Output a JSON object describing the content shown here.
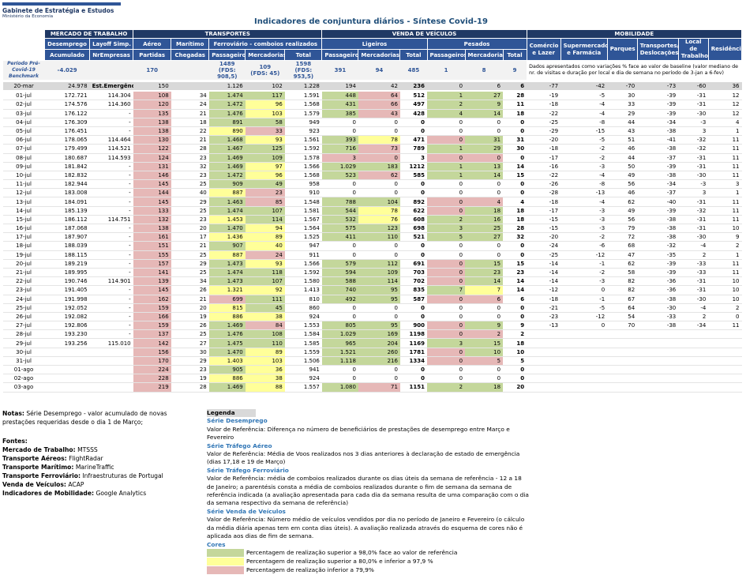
{
  "header": {
    "org": "Gabinete de Estratégia e Estudos",
    "ministry": "Ministério da Economia",
    "title": "Indicadores de conjuntura diários - Síntese Covid-19"
  },
  "table": {
    "groups": [
      "MERCADO DE TRABALHO",
      "TRANSPORTES",
      "VENDA DE VEÍCULOS",
      "MOBILIDADE"
    ],
    "subheaders": [
      "Desemprego",
      "Layoff Simp.",
      "Aéreo",
      "Marítimo",
      "Ferroviário - comboios realizados",
      "Ligeiros",
      "Pesados"
    ],
    "mobility_headers": [
      "Comércio e Lazer",
      "Supermercados e Farmácia",
      "Parques",
      "Transportes/ Deslocações",
      "Local de Trabalho",
      "Residência"
    ],
    "columns": [
      "Acumulado",
      "NrEmpresas",
      "Partidas",
      "Chegadas",
      "Passageiros",
      "Mercadorias",
      "Total",
      "Passageiros",
      "Mercadorias",
      "Total",
      "Passageiros",
      "Mercadorias",
      "Total"
    ],
    "shade_colors": {
      "g": "#c4d79b",
      "y": "#ffff99",
      "r": "#e6b8b7"
    },
    "benchmark": {
      "cells": [
        "Período Pré-Covid-19 Benchmark",
        "-4.029",
        null,
        "170",
        null,
        "1489\n(FDS: 908,5)",
        "109\n(FDS: 45)",
        "1598\n(FDS: 953,5)",
        "391",
        "94",
        "485",
        "1",
        "8",
        "9"
      ],
      "note": "Dados apresentados como variações % face ao valor de baseline (valor mediano de nr. de visitas e duração por local e dia de semana no período de 3-jan a 6-fev)"
    },
    "emergency": {
      "cells": [
        "20-mar",
        "24.978",
        "Est.Emergência",
        "150",
        null,
        "1.126",
        "102",
        "1.228",
        "194",
        "42",
        "236",
        "0",
        "6",
        "6",
        "-77",
        "-42",
        "-70",
        "-73",
        "-60",
        "36"
      ]
    },
    "rows": [
      {
        "cells": [
          "01-jul",
          "172.721",
          "114.304",
          "108",
          "34",
          "1.474",
          "117",
          "1.591",
          "448",
          "64",
          "512",
          "1",
          "27",
          "28",
          "-19",
          "-5",
          "30",
          "-39",
          "-31",
          "12"
        ],
        "shade": "...r.gg.gr.gg"
      },
      {
        "cells": [
          "02-jul",
          "174.576",
          "114.360",
          "120",
          "24",
          "1.472",
          "96",
          "1.568",
          "431",
          "66",
          "497",
          "2",
          "9",
          "11",
          "-18",
          "-4",
          "33",
          "-39",
          "-31",
          "12"
        ],
        "shade": "...r.gy.gr.gg"
      },
      {
        "cells": [
          "03-jul",
          "176.122",
          "-",
          "135",
          "21",
          "1.476",
          "103",
          "1.579",
          "385",
          "43",
          "428",
          "4",
          "14",
          "18",
          "-22",
          "-4",
          "29",
          "-39",
          "-30",
          "12"
        ],
        "shade": "...r.gy.gr.gg"
      },
      {
        "cells": [
          "04-jul",
          "176.309",
          "-",
          "138",
          "18",
          "891",
          "58",
          "949",
          "0",
          "0",
          "0",
          "0",
          "0",
          "0",
          "-25",
          "-8",
          "44",
          "-34",
          "-3",
          "4"
        ],
        "shade": "...r.gg"
      },
      {
        "cells": [
          "05-jul",
          "176.451",
          "-",
          "138",
          "22",
          "890",
          "33",
          "923",
          "0",
          "0",
          "0",
          "0",
          "0",
          "0",
          "-29",
          "-15",
          "43",
          "-38",
          "3",
          "1"
        ],
        "shade": "...r.yr"
      },
      {
        "cells": [
          "06-jul",
          "178.065",
          "114.464",
          "130",
          "21",
          "1.468",
          "93",
          "1.561",
          "393",
          "78",
          "471",
          "0",
          "31",
          "31",
          "-20",
          "-5",
          "51",
          "-41",
          "-32",
          "11"
        ],
        "shade": "...r.gy.gy.rg"
      },
      {
        "cells": [
          "07-jul",
          "179.499",
          "114.521",
          "122",
          "28",
          "1.467",
          "125",
          "1.592",
          "716",
          "73",
          "789",
          "1",
          "29",
          "30",
          "-18",
          "-2",
          "46",
          "-38",
          "-32",
          "11"
        ],
        "shade": "...r.gg.gr.gg"
      },
      {
        "cells": [
          "08-jul",
          "180.687",
          "114.593",
          "124",
          "23",
          "1.469",
          "109",
          "1.578",
          "3",
          "0",
          "3",
          "0",
          "0",
          "0",
          "-17",
          "-2",
          "44",
          "-37",
          "-31",
          "11"
        ],
        "shade": "...r.gg.rr.rr"
      },
      {
        "cells": [
          "09-jul",
          "181.842",
          "-",
          "131",
          "32",
          "1.469",
          "97",
          "1.566",
          "1.029",
          "183",
          "1212",
          "1",
          "13",
          "14",
          "-16",
          "-3",
          "50",
          "-39",
          "-31",
          "11"
        ],
        "shade": "...r.gy.gg.gg"
      },
      {
        "cells": [
          "10-jul",
          "182.832",
          "-",
          "146",
          "23",
          "1.472",
          "96",
          "1.568",
          "523",
          "62",
          "585",
          "1",
          "14",
          "15",
          "-22",
          "-4",
          "49",
          "-38",
          "-30",
          "11"
        ],
        "shade": "...r.gy.gr.gg"
      },
      {
        "cells": [
          "11-jul",
          "182.944",
          "-",
          "145",
          "25",
          "909",
          "49",
          "958",
          "0",
          "0",
          "0",
          "0",
          "0",
          "0",
          "-26",
          "-8",
          "56",
          "-34",
          "-3",
          "3"
        ],
        "shade": "...r.gg"
      },
      {
        "cells": [
          "12-jul",
          "183.008",
          "-",
          "144",
          "40",
          "887",
          "23",
          "910",
          "0",
          "0",
          "0",
          "0",
          "0",
          "0",
          "-28",
          "-13",
          "46",
          "-37",
          "3",
          "1"
        ],
        "shade": "...r.yr"
      },
      {
        "cells": [
          "13-jul",
          "184.091",
          "-",
          "145",
          "29",
          "1.463",
          "85",
          "1.548",
          "788",
          "104",
          "892",
          "0",
          "4",
          "4",
          "-18",
          "-4",
          "62",
          "-40",
          "-31",
          "11"
        ],
        "shade": "...r.gr.gg.rr"
      },
      {
        "cells": [
          "14-jul",
          "185.139",
          "-",
          "133",
          "25",
          "1.474",
          "107",
          "1.581",
          "544",
          "78",
          "622",
          "0",
          "18",
          "18",
          "-17",
          "-3",
          "49",
          "-39",
          "-32",
          "11"
        ],
        "shade": "...r.gg.gy.rg"
      },
      {
        "cells": [
          "15-jul",
          "186.112",
          "114.751",
          "132",
          "23",
          "1.453",
          "114",
          "1.567",
          "532",
          "76",
          "608",
          "2",
          "16",
          "18",
          "-15",
          "-3",
          "56",
          "-38",
          "-31",
          "11"
        ],
        "shade": "...r.yg.gy.gg"
      },
      {
        "cells": [
          "16-jul",
          "187.068",
          "-",
          "138",
          "20",
          "1.470",
          "94",
          "1.564",
          "575",
          "123",
          "698",
          "3",
          "25",
          "28",
          "-15",
          "-3",
          "79",
          "-38",
          "-31",
          "10"
        ],
        "shade": "...r.gy.gg.gg"
      },
      {
        "cells": [
          "17-jul",
          "187.907",
          "-",
          "161",
          "17",
          "1.436",
          "89",
          "1.525",
          "411",
          "110",
          "521",
          "5",
          "27",
          "32",
          "-20",
          "-2",
          "72",
          "-38",
          "-30",
          "9"
        ],
        "shade": "...r.yy.gg.gg"
      },
      {
        "cells": [
          "18-jul",
          "188.039",
          "-",
          "151",
          "21",
          "907",
          "40",
          "947",
          "0",
          "0",
          "0",
          "0",
          "0",
          "0",
          "-24",
          "-6",
          "68",
          "-32",
          "-4",
          "2"
        ],
        "shade": "...r.gy"
      },
      {
        "cells": [
          "19-jul",
          "188.115",
          "-",
          "155",
          "25",
          "887",
          "24",
          "911",
          "0",
          "0",
          "0",
          "0",
          "0",
          "0",
          "-25",
          "-12",
          "47",
          "-35",
          "2",
          "1"
        ],
        "shade": "...r.yr"
      },
      {
        "cells": [
          "20-jul",
          "189.219",
          "-",
          "157",
          "29",
          "1.473",
          "93",
          "1.566",
          "579",
          "112",
          "691",
          "0",
          "15",
          "15",
          "-14",
          "-1",
          "62",
          "-39",
          "-33",
          "11"
        ],
        "shade": "...r.gy.gg.rg"
      },
      {
        "cells": [
          "21-jul",
          "189.995",
          "-",
          "141",
          "25",
          "1.474",
          "118",
          "1.592",
          "594",
          "109",
          "703",
          "0",
          "23",
          "23",
          "-14",
          "-2",
          "58",
          "-39",
          "-33",
          "11"
        ],
        "shade": "...r.gg.gg.rg"
      },
      {
        "cells": [
          "22-jul",
          "190.746",
          "114.901",
          "139",
          "34",
          "1.473",
          "107",
          "1.580",
          "588",
          "114",
          "702",
          "0",
          "14",
          "14",
          "-14",
          "-3",
          "82",
          "-36",
          "-31",
          "10"
        ],
        "shade": "...r.gg.gg.rg"
      },
      {
        "cells": [
          "23-jul",
          "191.405",
          "-",
          "145",
          "26",
          "1.321",
          "92",
          "1.413",
          "740",
          "95",
          "835",
          "7",
          "7",
          "14",
          "-12",
          "0",
          "82",
          "-36",
          "-31",
          "10"
        ],
        "shade": "...r.yy.gg.gy"
      },
      {
        "cells": [
          "24-jul",
          "191.998",
          "-",
          "162",
          "21",
          "699",
          "111",
          "810",
          "492",
          "95",
          "587",
          "0",
          "6",
          "6",
          "-18",
          "-1",
          "67",
          "-38",
          "-30",
          "10"
        ],
        "shade": "...r.rg.gg.rr"
      },
      {
        "cells": [
          "25-jul",
          "192.052",
          "-",
          "159",
          "20",
          "815",
          "45",
          "860",
          "0",
          "0",
          "0",
          "0",
          "0",
          "0",
          "-21",
          "-5",
          "64",
          "-30",
          "-4",
          "2"
        ],
        "shade": "...r.yg"
      },
      {
        "cells": [
          "26-jul",
          "192.082",
          "-",
          "166",
          "19",
          "886",
          "38",
          "924",
          "0",
          "0",
          "0",
          "0",
          "0",
          "0",
          "-23",
          "-12",
          "54",
          "-33",
          "2",
          "0"
        ],
        "shade": "...r.yy"
      },
      {
        "cells": [
          "27-jul",
          "192.806",
          "-",
          "159",
          "26",
          "1.469",
          "84",
          "1.553",
          "805",
          "95",
          "900",
          "0",
          "9",
          "9",
          "-13",
          "0",
          "70",
          "-38",
          "-34",
          "11"
        ],
        "shade": "...r.gr.gg.rg"
      },
      {
        "cells": [
          "28-jul",
          "193.230",
          "-",
          "137",
          "25",
          "1.476",
          "108",
          "1.584",
          "1.029",
          "169",
          "1198",
          "0",
          "2",
          "2"
        ],
        "shade": "...r.gg.gg.rr"
      },
      {
        "cells": [
          "29-jul",
          "193.256",
          "115.010",
          "142",
          "27",
          "1.475",
          "110",
          "1.585",
          "965",
          "204",
          "1169",
          "3",
          "15",
          "18"
        ],
        "shade": "...r.gg.gg.gg"
      },
      {
        "cells": [
          "30-jul",
          null,
          null,
          "156",
          "30",
          "1.470",
          "89",
          "1.559",
          "1.521",
          "260",
          "1781",
          "0",
          "10",
          "10"
        ],
        "shade": "...r.gy.gg.rg"
      },
      {
        "cells": [
          "31-jul",
          null,
          null,
          "170",
          "29",
          "1.403",
          "103",
          "1.506",
          "1.118",
          "216",
          "1334",
          "0",
          "5",
          "5"
        ],
        "shade": "...r.yy.gg.rr"
      },
      {
        "cells": [
          "01-ago",
          null,
          null,
          "224",
          "23",
          "905",
          "36",
          "941",
          "0",
          "0",
          "0",
          "0",
          "0",
          "0"
        ],
        "shade": "...r.gy"
      },
      {
        "cells": [
          "02-ago",
          null,
          null,
          "228",
          "19",
          "886",
          "38",
          "924",
          "0",
          "0",
          "0",
          "0",
          "0",
          "0"
        ],
        "shade": "...r.yy"
      },
      {
        "cells": [
          "03-ago",
          null,
          null,
          "219",
          "28",
          "1.469",
          "88",
          "1.557",
          "1.080",
          "71",
          "1151",
          "2",
          "18",
          "20"
        ],
        "shade": "...r.gy.gr.gg"
      }
    ]
  },
  "notes": {
    "label": "Notas:",
    "text": "Série Desemprego - valor acumulado de novas prestações requeridas desde o dia 1 de Março;"
  },
  "sources": {
    "label": "Fontes:",
    "items": [
      {
        "label": "Mercado de Trabalho:",
        "text": "MTSSS"
      },
      {
        "label": "Transporte Aéreos:",
        "text": "FlightRadar"
      },
      {
        "label": "Transporte Marítimo:",
        "text": "MarineTraffic"
      },
      {
        "label": "Transporte Ferroviário:",
        "text": "Infraestruturas de Portugal"
      },
      {
        "label": "Venda de Veículos:",
        "text": "ACAP"
      },
      {
        "label": "Indicadores de Mobilidade:",
        "text": "Google Analytics"
      }
    ]
  },
  "legend": {
    "title": "Legenda",
    "sections": [
      {
        "title": "Série Desemprego",
        "text": "Valor de Referência: Diferença no número de beneficiários de prestações de desemprego entre Março e Fevereiro"
      },
      {
        "title": "Série Tráfego Aéreo",
        "text": "Valor de Referência: Média de Voos realizados nos 3 dias anteriores à declaração de estado de emergência (dias 17,18 e 19 de Março)"
      },
      {
        "title": "Série Tráfego Ferroviário",
        "text": "Valor de Referência: média de comboios realizados durante os dias úteis da semana de referência - 12 a 18 de Janeiro; a parentésis consta a média de comboios realizados durante o fim de semana da semana de referência indicada (a avaliação apresentada para cada dia da semana resulta de uma comparação com o dia da semana respectivo da semana de referência)"
      },
      {
        "title": "Série Venda de Veículos",
        "text": "Valor de Referência: Número médio de veículos vendidos por dia no período de Janeiro e Fevereiro (o cálculo da média diária apenas tem em conta dias úteis). A avaliação realizada através do esquema de cores não é aplicada aos dias de fim de semana."
      }
    ],
    "colors_title": "Cores",
    "colors": [
      {
        "shade": "g",
        "text": "Percentagem de realização superior a 98,0% face ao valor de referência"
      },
      {
        "shade": "y",
        "text": "Percentagem de realização superior a 80,0% e inferior a 97,9 %"
      },
      {
        "shade": "r",
        "text": "Percentagem de realização inferior a 79,9%"
      }
    ]
  }
}
